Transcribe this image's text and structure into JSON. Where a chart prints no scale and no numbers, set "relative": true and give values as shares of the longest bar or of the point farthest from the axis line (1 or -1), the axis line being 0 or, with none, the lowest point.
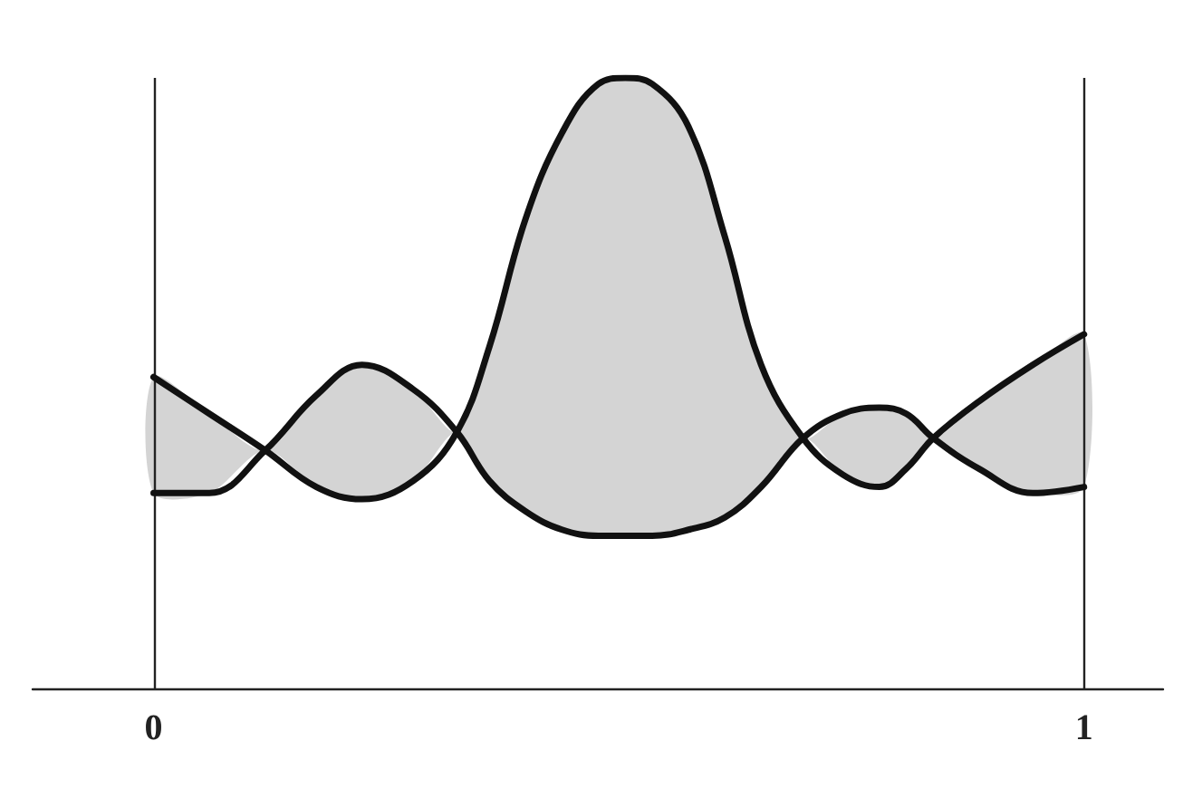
{
  "chart_data": {
    "type": "line",
    "relative": true,
    "xlim": [
      -0.13,
      1.085
    ],
    "xticks": [
      0,
      1
    ],
    "marker": "none",
    "line_style": "solid",
    "ref_lines": [
      {
        "axis": "x",
        "value": 0
      },
      {
        "axis": "x",
        "value": 1
      }
    ],
    "series": [
      {
        "color": "#111111",
        "x": [
          0,
          0.06,
          0.12,
          0.175,
          0.224,
          0.279,
          0.326,
          0.361,
          0.4,
          0.439,
          0.478,
          0.507,
          0.536,
          0.575,
          0.614,
          0.653,
          0.698,
          0.741,
          0.78,
          0.809,
          0.838,
          0.887,
          0.945,
          1
        ],
        "values": [
          0.51,
          0.45,
          0.39,
          0.33,
          0.31,
          0.34,
          0.42,
          0.56,
          0.77,
          0.91,
          0.99,
          1,
          0.99,
          0.92,
          0.74,
          0.53,
          0.41,
          0.35,
          0.33,
          0.36,
          0.41,
          0.47,
          0.53,
          0.58
        ],
        "lower": [
          0.32,
          0.32,
          0.39,
          0.33,
          0.31,
          0.34,
          0.42,
          0.34,
          0.29,
          0.26,
          0.25,
          0.25,
          0.25,
          0.26,
          0.28,
          0.33,
          0.41,
          0.35,
          0.33,
          0.36,
          0.41,
          0.36,
          0.32,
          0.33
        ],
        "upper": [
          0.51,
          0.45,
          0.39,
          0.48,
          0.53,
          0.49,
          0.42,
          0.56,
          0.77,
          0.91,
          0.99,
          1,
          0.99,
          0.92,
          0.74,
          0.53,
          0.41,
          0.45,
          0.46,
          0.45,
          0.41,
          0.47,
          0.53,
          0.58
        ]
      },
      {
        "color": "#111111",
        "x": [
          0,
          0.06,
          0.12,
          0.175,
          0.224,
          0.279,
          0.326,
          0.361,
          0.4,
          0.439,
          0.478,
          0.507,
          0.536,
          0.575,
          0.614,
          0.653,
          0.698,
          0.741,
          0.78,
          0.809,
          0.838,
          0.887,
          0.945,
          1
        ],
        "values": [
          0.32,
          0.32,
          0.39,
          0.48,
          0.53,
          0.49,
          0.42,
          0.34,
          0.29,
          0.26,
          0.25,
          0.25,
          0.25,
          0.26,
          0.28,
          0.33,
          0.41,
          0.45,
          0.46,
          0.45,
          0.41,
          0.36,
          0.32,
          0.33
        ]
      }
    ]
  }
}
